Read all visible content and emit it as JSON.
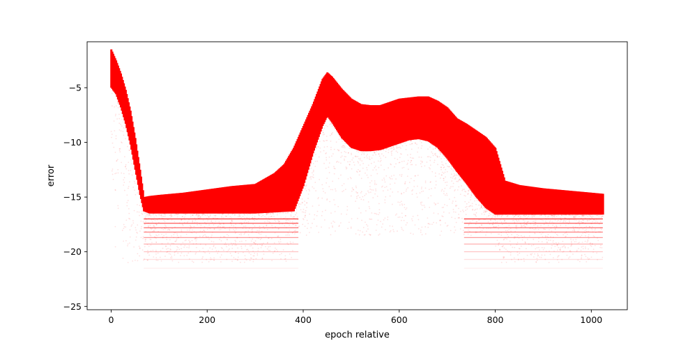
{
  "chart_data": {
    "type": "scatter",
    "title": "",
    "xlabel": "epoch relative",
    "ylabel": "error",
    "xlim": [
      -50,
      1075
    ],
    "ylim": [
      -25.3,
      -0.8
    ],
    "xticks": [
      0,
      200,
      400,
      600,
      800,
      1000
    ],
    "yticks": [
      -25,
      -20,
      -15,
      -10,
      -5
    ],
    "grid": false,
    "legend": "none",
    "color": "#ff0000",
    "series": [
      {
        "name": "",
        "upper_envelope": {
          "x": [
            0,
            10,
            20,
            30,
            40,
            50,
            60,
            68,
            80,
            100,
            150,
            200,
            250,
            300,
            340,
            360,
            380,
            400,
            420,
            440,
            450,
            460,
            480,
            500,
            520,
            540,
            560,
            580,
            600,
            620,
            640,
            660,
            680,
            700,
            720,
            740,
            760,
            780,
            800,
            820,
            850,
            900,
            950,
            1000,
            1024
          ],
          "y": [
            -1.5,
            -2.5,
            -3.7,
            -5.2,
            -7.1,
            -9.6,
            -12.5,
            -15.0,
            -14.9,
            -14.8,
            -14.6,
            -14.3,
            -14.0,
            -13.8,
            -12.8,
            -12.0,
            -10.5,
            -8.5,
            -6.5,
            -4.2,
            -3.6,
            -4.0,
            -5.1,
            -6.0,
            -6.5,
            -6.6,
            -6.6,
            -6.3,
            -6.0,
            -5.9,
            -5.8,
            -5.8,
            -6.2,
            -6.8,
            -7.8,
            -8.3,
            -8.9,
            -9.5,
            -10.5,
            -13.5,
            -13.9,
            -14.2,
            -14.4,
            -14.6,
            -14.7
          ]
        },
        "dense_lower": {
          "x": [
            0,
            10,
            20,
            30,
            40,
            50,
            60,
            68,
            80,
            100,
            200,
            300,
            380,
            400,
            420,
            440,
            450,
            460,
            480,
            500,
            520,
            540,
            560,
            580,
            600,
            620,
            640,
            660,
            680,
            700,
            720,
            740,
            760,
            780,
            800,
            820,
            850,
            900,
            950,
            1000,
            1024
          ],
          "y": [
            -5.0,
            -5.6,
            -6.8,
            -8.3,
            -10.2,
            -12.5,
            -14.8,
            -16.3,
            -16.5,
            -16.5,
            -16.5,
            -16.5,
            -16.3,
            -14.0,
            -11.0,
            -8.5,
            -7.6,
            -8.2,
            -9.6,
            -10.5,
            -10.8,
            -10.8,
            -10.7,
            -10.4,
            -10.1,
            -9.8,
            -9.7,
            -9.9,
            -10.5,
            -11.5,
            -12.7,
            -13.8,
            -15.0,
            -16.0,
            -16.6,
            -16.6,
            -16.6,
            -16.6,
            -16.6,
            -16.6,
            -16.6
          ]
        },
        "quantized_levels": [
          -17.0,
          -17.4,
          -17.8,
          -18.2,
          -18.7,
          -19.3,
          -20.0,
          -20.7,
          -21.5
        ],
        "n_epochs": 1024
      }
    ]
  }
}
